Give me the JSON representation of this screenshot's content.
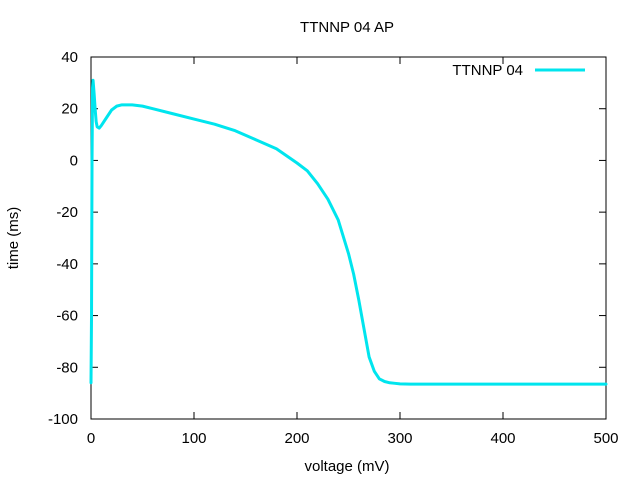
{
  "chart_data": {
    "type": "line",
    "title": "TTNNP 04 AP",
    "xlabel": "voltage (mV)",
    "ylabel": "time (ms)",
    "xlim": [
      0,
      500
    ],
    "ylim": [
      -100,
      40
    ],
    "xticks": [
      0,
      100,
      200,
      300,
      400,
      500
    ],
    "yticks": [
      -100,
      -80,
      -60,
      -40,
      -20,
      0,
      20,
      40
    ],
    "grid": false,
    "legend_position": "top-right",
    "series": [
      {
        "name": "TTNNP 04",
        "color": "#00e5ee",
        "x": [
          0,
          0.5,
          1,
          1.5,
          2,
          3,
          4,
          5,
          6,
          8,
          10,
          15,
          20,
          25,
          30,
          40,
          50,
          60,
          80,
          100,
          120,
          140,
          160,
          180,
          200,
          210,
          220,
          230,
          240,
          250,
          255,
          260,
          265,
          270,
          275,
          280,
          285,
          290,
          295,
          300,
          310,
          350,
          400,
          450,
          500
        ],
        "y": [
          -86,
          -60,
          0,
          28,
          31,
          26,
          20,
          15,
          13,
          12.5,
          13.5,
          16.5,
          19.5,
          21,
          21.5,
          21.5,
          21,
          20,
          18,
          16,
          14,
          11.5,
          8,
          4.5,
          -1,
          -4,
          -9,
          -15,
          -23,
          -36,
          -44,
          -54,
          -65,
          -76,
          -81.5,
          -84.5,
          -85.5,
          -86,
          -86.2,
          -86.4,
          -86.5,
          -86.5,
          -86.5,
          -86.5,
          -86.5
        ]
      }
    ]
  }
}
